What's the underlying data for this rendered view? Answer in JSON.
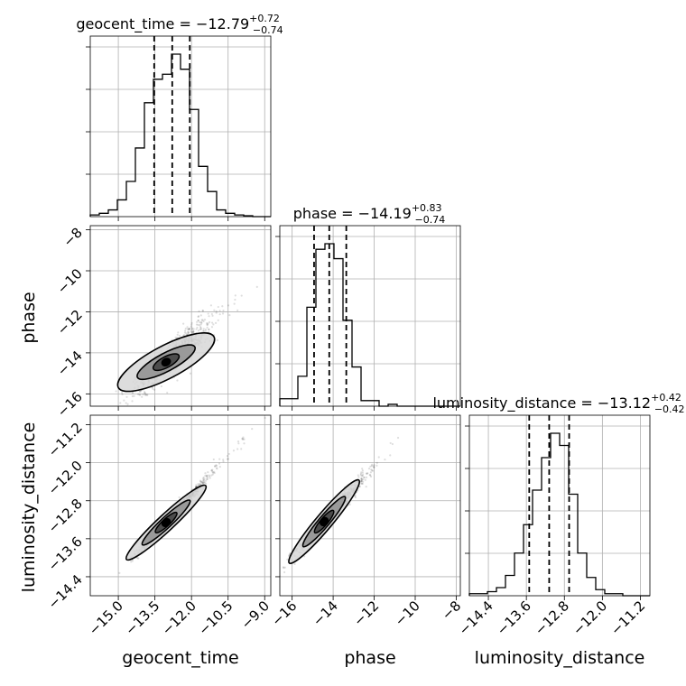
{
  "chart_data": {
    "type": "corner",
    "parameters": [
      "geocent_time",
      "phase",
      "luminosity_distance"
    ],
    "titles": [
      {
        "prefix": "geocent_time = −12.79",
        "sup": "+0.72",
        "sub": "−0.74"
      },
      {
        "prefix": "phase = −14.19",
        "sup": "+0.83",
        "sub": "−0.74"
      },
      {
        "prefix": "luminosity_distance = −13.12",
        "sup": "+0.42",
        "sub": "−0.42"
      }
    ],
    "medians": [
      -12.79,
      -14.19,
      -13.12
    ],
    "quantiles": [
      [
        -13.53,
        -12.79,
        -12.07
      ],
      [
        -14.93,
        -14.19,
        -13.36
      ],
      [
        -13.54,
        -13.12,
        -12.7
      ]
    ],
    "ranges": [
      [
        -16.15,
        -8.75
      ],
      [
        -16.6,
        -7.8
      ],
      [
        -14.8,
        -11.0
      ]
    ],
    "ticks": [
      {
        "values": [
          -15.0,
          -13.5,
          -12.0,
          -10.5,
          -9.0
        ],
        "labels": [
          "−15.0",
          "−13.5",
          "−12.0",
          "−10.5",
          "−9.0"
        ]
      },
      {
        "values": [
          -16,
          -14,
          -12,
          -10,
          -8
        ],
        "labels": [
          "−16",
          "−14",
          "−12",
          "−10",
          "−8"
        ]
      },
      {
        "values": [
          -14.4,
          -13.6,
          -12.8,
          -12.0,
          -11.2
        ],
        "labels": [
          "−14.4",
          "−13.6",
          "−12.8",
          "−12.0",
          "−11.2"
        ]
      }
    ],
    "histograms": [
      {
        "edges": [
          -16.15,
          -15.78,
          -15.41,
          -15.04,
          -14.67,
          -14.3,
          -13.93,
          -13.56,
          -13.19,
          -12.82,
          -12.45,
          -12.08,
          -11.71,
          -11.34,
          -10.97,
          -10.6,
          -10.23,
          -9.86,
          -9.49,
          -9.12,
          -8.75
        ],
        "counts": [
          1,
          2,
          4,
          10,
          21,
          41,
          68,
          82,
          85,
          97,
          88,
          64,
          30,
          15,
          4,
          2,
          1,
          0.5,
          0,
          0
        ]
      },
      {
        "edges": [
          -16.6,
          -16.16,
          -15.72,
          -15.28,
          -14.84,
          -14.4,
          -13.96,
          -13.52,
          -13.08,
          -12.64,
          -12.2,
          -11.76,
          -11.32,
          -10.88,
          -10.44,
          -10.0,
          -9.56,
          -9.12,
          -8.68,
          -8.24,
          -7.8
        ],
        "counts": [
          4,
          4,
          16,
          53,
          84,
          87,
          79,
          46,
          21,
          3,
          3,
          0,
          1,
          0,
          0,
          0,
          0,
          0,
          0,
          0
        ]
      },
      {
        "edges": [
          -14.8,
          -14.61,
          -14.42,
          -14.23,
          -14.04,
          -13.85,
          -13.66,
          -13.47,
          -13.28,
          -13.09,
          -12.9,
          -12.71,
          -12.52,
          -12.33,
          -12.14,
          -11.95,
          -11.76,
          -11.57,
          -11.38,
          -11.19,
          -11.0
        ],
        "counts": [
          1,
          1,
          2,
          4,
          10,
          21,
          35,
          52,
          68,
          80,
          74,
          50,
          21,
          9,
          3,
          1,
          1,
          0,
          0,
          0
        ]
      }
    ],
    "grid": true
  }
}
